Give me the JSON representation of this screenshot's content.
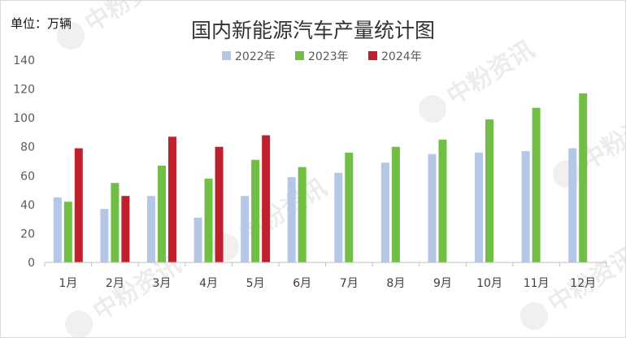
{
  "unit_label": "单位：万辆",
  "watermark": "中粉资讯",
  "chart_data": {
    "type": "bar",
    "title": "国内新能源汽车产量统计图",
    "xlabel": "",
    "ylabel": "",
    "categories": [
      "1月",
      "2月",
      "3月",
      "4月",
      "5月",
      "6月",
      "7月",
      "8月",
      "9月",
      "10月",
      "11月",
      "12月"
    ],
    "series": [
      {
        "name": "2022年",
        "color": "#b4c7e7",
        "values": [
          45,
          37,
          46,
          31,
          46,
          59,
          62,
          69,
          75,
          76,
          77,
          79
        ]
      },
      {
        "name": "2023年",
        "color": "#70bf44",
        "values": [
          42,
          55,
          67,
          58,
          71,
          66,
          76,
          80,
          85,
          99,
          107,
          117
        ]
      },
      {
        "name": "2024年",
        "color": "#c0202e",
        "values": [
          79,
          46,
          87,
          80,
          88,
          null,
          null,
          null,
          null,
          null,
          null,
          null
        ]
      }
    ],
    "ylim": [
      0,
      140
    ],
    "yticks": [
      0,
      20,
      40,
      60,
      80,
      100,
      120,
      140
    ],
    "grid": false,
    "legend_position": "top-center"
  }
}
